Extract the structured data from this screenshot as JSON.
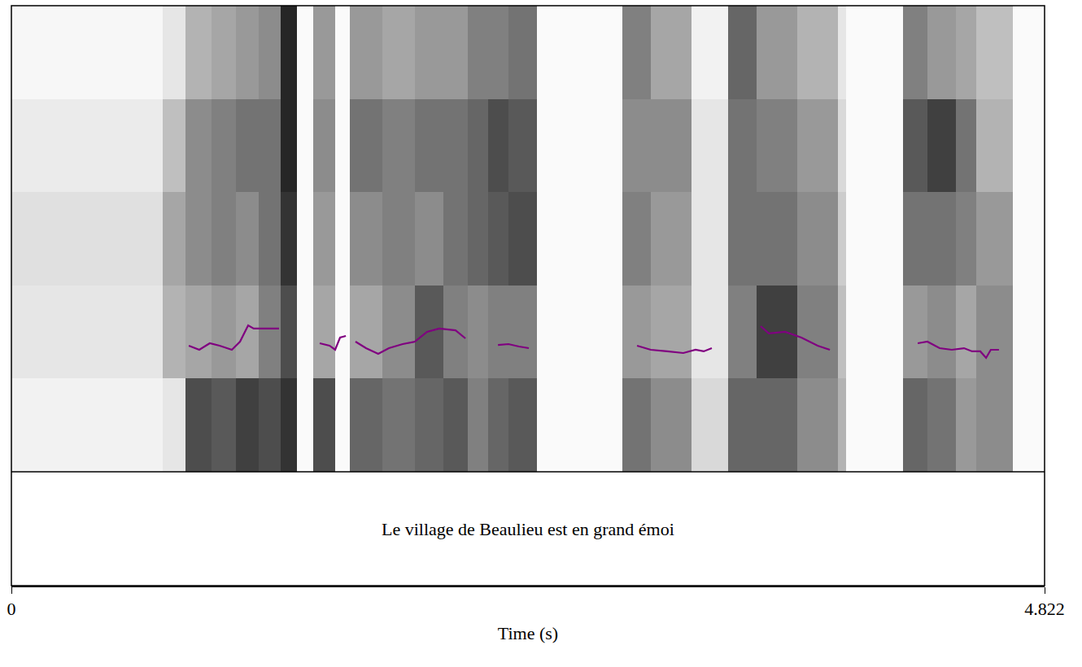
{
  "chart_data": {
    "type": "spectrogram",
    "xlabel": "Time (s)",
    "xlim": [
      0,
      4.822
    ],
    "xticks": [
      0,
      4.822
    ],
    "ylim": [
      0,
      5000
    ],
    "y2lim": [
      0,
      500
    ],
    "tick_labels": "x",
    "annotations": [
      {
        "text": "Le village de Beaulieu est en grand émoi"
      }
    ],
    "heatmap": {
      "x_edges": [
        0,
        0.706,
        0.813,
        0.934,
        1.048,
        1.154,
        1.257,
        1.333,
        1.409,
        1.511,
        1.58,
        1.731,
        1.883,
        2.016,
        2.13,
        2.225,
        2.32,
        2.453,
        2.851,
        2.984,
        3.174,
        3.345,
        3.478,
        3.668,
        3.858,
        3.896,
        4.161,
        4.275,
        4.408,
        4.503,
        4.674,
        4.822
      ],
      "y_edges": [
        0,
        1000,
        2000,
        3000,
        4000,
        5000
      ],
      "zlim": [
        0,
        1
      ],
      "cells": [
        [
          0.05,
          0.1,
          0.7,
          0.65,
          0.75,
          0.7,
          0.8,
          0.02,
          0.7,
          0.02,
          0.6,
          0.55,
          0.6,
          0.65,
          0.5,
          0.6,
          0.65,
          0.02,
          0.55,
          0.45,
          0.15,
          0.6,
          0.6,
          0.45,
          0.3,
          0.02,
          0.6,
          0.55,
          0.4,
          0.45,
          0.02
        ],
        [
          0.1,
          0.3,
          0.35,
          0.4,
          0.35,
          0.5,
          0.7,
          0.02,
          0.35,
          0.02,
          0.35,
          0.45,
          0.65,
          0.5,
          0.45,
          0.5,
          0.5,
          0.02,
          0.4,
          0.35,
          0.1,
          0.5,
          0.75,
          0.5,
          0.25,
          0.02,
          0.4,
          0.45,
          0.35,
          0.45,
          0.02
        ],
        [
          0.12,
          0.35,
          0.45,
          0.5,
          0.45,
          0.55,
          0.8,
          0.02,
          0.4,
          0.02,
          0.45,
          0.5,
          0.45,
          0.55,
          0.6,
          0.65,
          0.7,
          0.02,
          0.5,
          0.4,
          0.1,
          0.55,
          0.55,
          0.45,
          0.2,
          0.02,
          0.55,
          0.55,
          0.5,
          0.4,
          0.02
        ],
        [
          0.08,
          0.25,
          0.45,
          0.5,
          0.55,
          0.55,
          0.85,
          0.02,
          0.45,
          0.02,
          0.55,
          0.5,
          0.55,
          0.55,
          0.6,
          0.7,
          0.65,
          0.02,
          0.45,
          0.45,
          0.1,
          0.55,
          0.5,
          0.4,
          0.15,
          0.02,
          0.65,
          0.75,
          0.55,
          0.3,
          0.02
        ],
        [
          0.03,
          0.1,
          0.3,
          0.35,
          0.4,
          0.45,
          0.85,
          0.02,
          0.4,
          0.02,
          0.4,
          0.35,
          0.4,
          0.4,
          0.5,
          0.5,
          0.55,
          0.02,
          0.5,
          0.35,
          0.05,
          0.6,
          0.4,
          0.3,
          0.1,
          0.02,
          0.5,
          0.4,
          0.35,
          0.25,
          0.02
        ]
      ]
    },
    "series": [
      {
        "type": "line",
        "color": "#800080",
        "axis": "y2",
        "x": [
          0.828,
          0.877,
          0.926,
          0.972,
          1.029,
          1.067,
          1.105,
          1.131,
          1.249,
          1.35,
          1.439,
          1.485,
          1.511,
          1.534,
          1.561,
          1.58,
          1.606,
          1.655,
          1.712,
          1.762,
          1.826,
          1.883,
          1.94,
          1.997,
          2.073,
          2.119,
          2.2,
          2.271,
          2.32,
          2.369,
          2.415,
          2.7,
          2.92,
          2.984,
          3.06,
          3.136,
          3.193,
          3.231,
          3.269,
          3.4,
          3.497,
          3.535,
          3.611,
          3.687,
          3.763,
          3.82,
          4.0,
          4.23,
          4.275,
          4.332,
          4.389,
          4.446,
          4.484,
          4.522,
          4.549,
          4.571,
          4.609
        ],
        "values": [
          135.3,
          130.9,
          137.9,
          135.3,
          130.9,
          139.6,
          157.1,
          153.6,
          153.6,
          null,
          137.9,
          135.3,
          130.9,
          144,
          145.7,
          null,
          139.6,
          132.6,
          126.5,
          132.6,
          137,
          139.6,
          150.1,
          153.6,
          151.8,
          143.1,
          null,
          136.1,
          137,
          134.4,
          132.6,
          null,
          135.3,
          130.9,
          129.2,
          127.4,
          130.9,
          129.2,
          132.6,
          null,
          156.2,
          148.4,
          150.1,
          144,
          135.3,
          130.9,
          null,
          137.9,
          139.6,
          132.6,
          130.9,
          132.6,
          129.2,
          129.2,
          122.2,
          130.9,
          130.9
        ]
      }
    ]
  }
}
